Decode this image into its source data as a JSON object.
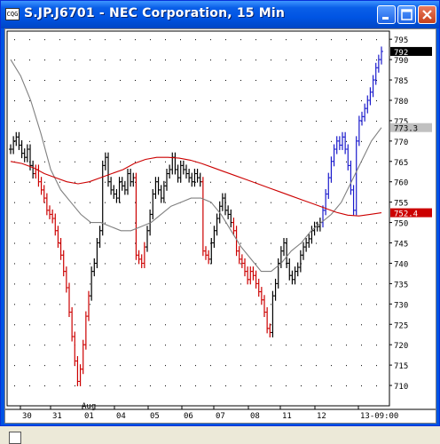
{
  "window": {
    "title": "S.JP.J6701 - NEC Corporation, 15 Min",
    "icon_text": "CQG",
    "controls": {
      "minimize": "minimize-icon",
      "maximize": "maximize-icon",
      "close": "close-icon"
    }
  },
  "chart_data": {
    "type": "bar",
    "symbol": "S.JP.J6701",
    "instrument": "NEC Corporation",
    "interval": "15 Min",
    "ylim": [
      705,
      797
    ],
    "y_ticks": [
      710,
      715,
      720,
      725,
      730,
      735,
      740,
      745,
      750,
      755,
      760,
      765,
      770,
      775,
      780,
      785,
      790,
      795
    ],
    "x_ticks": [
      "30",
      "31",
      "01",
      "04",
      "05",
      "06",
      "07",
      "08",
      "11",
      "12",
      "13-09:00"
    ],
    "x_sublabel": "Aug",
    "last_price": "792",
    "ma_short_value": "773.3",
    "ma_long_value": "752.4",
    "colors": {
      "up_bar": "#000000",
      "down_bar": "#cc0000",
      "recent_bar": "#1a1acc",
      "ma_short": "#808080",
      "ma_long": "#cc0000",
      "grid_dot": "#000000"
    },
    "grid": true,
    "series": [
      {
        "segment": 1,
        "color": "black",
        "closes": [
          768,
          770,
          771,
          769,
          767,
          766,
          768,
          764,
          762
        ]
      },
      {
        "segment": 2,
        "color": "red",
        "closes": [
          763,
          760,
          758,
          756,
          753,
          752,
          751,
          748,
          745,
          742,
          738,
          734,
          728,
          722,
          716,
          711,
          714,
          720,
          727,
          732
        ]
      },
      {
        "segment": 3,
        "color": "black",
        "closes": [
          738,
          740,
          745,
          748,
          764,
          766,
          760,
          758,
          757,
          756,
          760,
          759,
          758,
          762,
          760,
          761
        ]
      },
      {
        "segment": 4,
        "color": "red",
        "closes": [
          742,
          741,
          740,
          744
        ]
      },
      {
        "segment": 5,
        "color": "black",
        "closes": [
          748,
          752,
          757,
          760,
          758,
          756,
          759,
          762,
          763,
          766,
          763,
          761,
          764,
          763,
          762,
          761,
          760,
          762,
          761,
          760
        ]
      },
      {
        "segment": 6,
        "color": "red",
        "closes": [
          743,
          742,
          741
        ]
      },
      {
        "segment": 7,
        "color": "black",
        "closes": [
          745,
          748,
          751,
          754,
          756,
          753,
          752,
          750
        ]
      },
      {
        "segment": 8,
        "color": "red",
        "closes": [
          748,
          743,
          741,
          740,
          738,
          736,
          738,
          737,
          735,
          733,
          731,
          728,
          724,
          723
        ]
      },
      {
        "segment": 9,
        "color": "black",
        "closes": [
          732,
          735,
          740,
          743,
          745,
          740,
          737,
          736,
          738,
          739,
          742,
          744,
          745,
          746,
          748,
          749,
          749,
          750
        ]
      },
      {
        "segment": 10,
        "color": "blue",
        "closes": [
          753,
          757,
          761,
          765,
          768,
          770,
          769,
          771,
          768,
          764,
          758,
          753,
          770,
          775,
          776,
          778,
          780,
          782,
          785,
          788,
          790,
          792
        ]
      }
    ],
    "ma_short": [
      790,
      786,
      780,
      772,
      763,
      758,
      755,
      752,
      750,
      750,
      749,
      748,
      748,
      749,
      750,
      752,
      754,
      755,
      756,
      756,
      755,
      752,
      748,
      744,
      741,
      738,
      738,
      740,
      743,
      745,
      748,
      750,
      752,
      755,
      760,
      765,
      770,
      773.3
    ],
    "ma_long": [
      765,
      764.5,
      763.5,
      762,
      761,
      760,
      759.5,
      760,
      761,
      762,
      763,
      764.5,
      765.5,
      766,
      766,
      765.8,
      765.3,
      764.5,
      763.5,
      762.5,
      761.5,
      760.5,
      759.5,
      758.5,
      757.5,
      756.5,
      755.5,
      754.5,
      753.5,
      752.5,
      751.8,
      751.6,
      752,
      752.4
    ]
  }
}
